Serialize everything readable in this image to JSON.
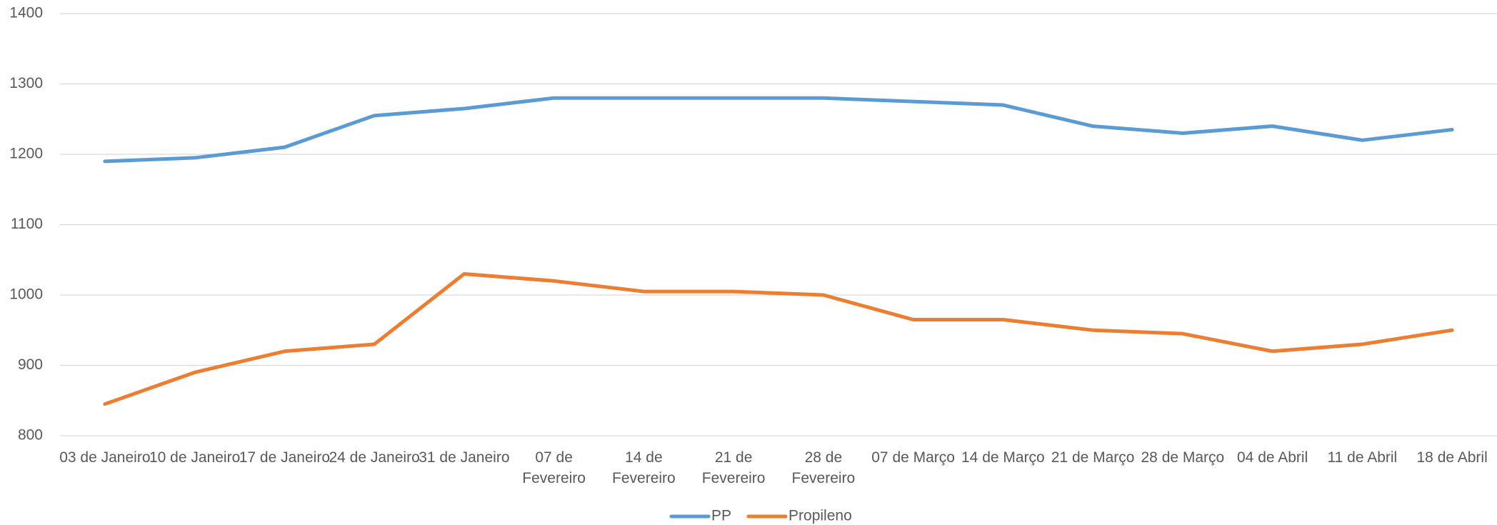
{
  "chart_data": {
    "type": "line",
    "categories": [
      "03 de Janeiro",
      "10 de Janeiro",
      "17 de Janeiro",
      "24 de Janeiro",
      "31 de Janeiro",
      "07 de Fevereiro",
      "14 de Fevereiro",
      "21 de Fevereiro",
      "28 de Fevereiro",
      "07 de Março",
      "14 de Março",
      "21 de Março",
      "28 de Março",
      "04 de Abril",
      "11 de Abril",
      "18 de Abril"
    ],
    "series": [
      {
        "name": "PP",
        "color": "#5b9bd5",
        "values": [
          1190,
          1195,
          1210,
          1255,
          1265,
          1280,
          1280,
          1280,
          1280,
          1275,
          1270,
          1240,
          1230,
          1240,
          1220,
          1235
        ]
      },
      {
        "name": "Propileno",
        "color": "#ed7d31",
        "values": [
          845,
          890,
          920,
          930,
          1030,
          1020,
          1005,
          1005,
          1000,
          965,
          965,
          950,
          945,
          920,
          930,
          950
        ]
      }
    ],
    "ylim": [
      800,
      1400
    ],
    "yticks": [
      800,
      900,
      1000,
      1100,
      1200,
      1300,
      1400
    ],
    "grid": true,
    "legend": "bottom"
  }
}
